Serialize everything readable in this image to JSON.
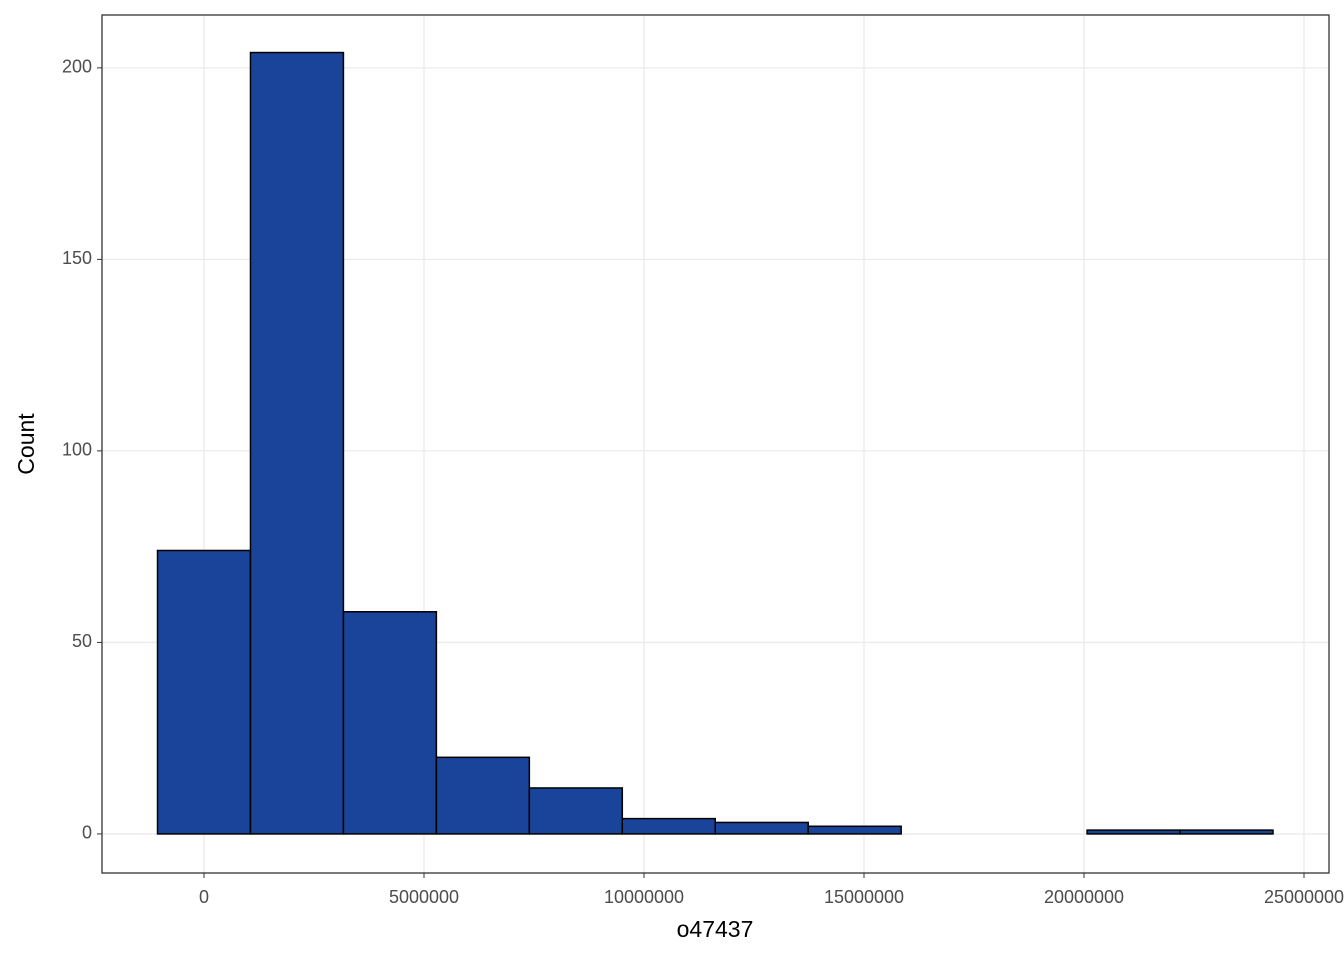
{
  "chart_data": {
    "type": "histogram",
    "x_label": "o47437",
    "y_label": "Count",
    "bins": [
      -1056300,
      1056300,
      3168900,
      5281500,
      7394100,
      9506700,
      11619300,
      13731900,
      15844500,
      17957100,
      20069700,
      22182300,
      24294900
    ],
    "counts": [
      74,
      204,
      58,
      20,
      12,
      4,
      3,
      2,
      0,
      0,
      1,
      1
    ],
    "color": "#1a4499",
    "xlim": [
      -2318000,
      25568000
    ],
    "xticks": [
      0,
      5000000,
      10000000,
      15000000,
      20000000,
      25000000
    ],
    "ylim": [
      -10.2,
      213.8
    ],
    "yticks": [
      0,
      50,
      100,
      150,
      200
    ],
    "grid": true
  }
}
